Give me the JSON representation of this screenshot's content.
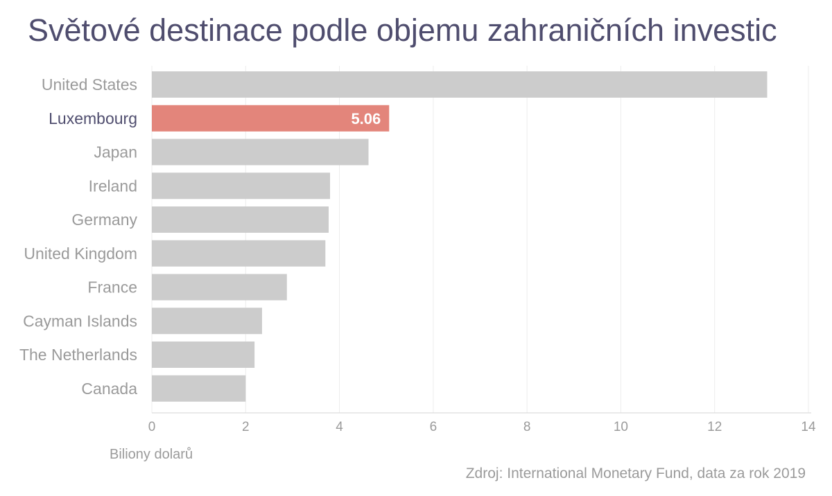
{
  "chart_data": {
    "type": "bar",
    "orientation": "horizontal",
    "title": "Světové destinace podle objemu zahraničních investic",
    "xlabel": "Biliony dolarů",
    "ylabel": "",
    "source": "Zdroj: International Monetary Fund, data za rok 2019",
    "categories": [
      "United States",
      "Luxembourg",
      "Japan",
      "Ireland",
      "Germany",
      "United Kingdom",
      "France",
      "Cayman Islands",
      "The Netherlands",
      "Canada"
    ],
    "values": [
      13.12,
      5.06,
      4.62,
      3.8,
      3.77,
      3.7,
      2.88,
      2.35,
      2.19,
      2.0
    ],
    "highlight": {
      "category": "Luxembourg",
      "label": "5.06"
    },
    "xlim": [
      0,
      14
    ],
    "xticks": [
      "0",
      "2",
      "4",
      "6",
      "8",
      "10",
      "12",
      "14"
    ],
    "grid": true,
    "colors": {
      "bar": "#cccccc",
      "highlight": "#e3857b",
      "title": "#4f4d6e",
      "label": "#9a9a9a",
      "highlight_label": "#4f4d6e",
      "grid": "#ececec"
    }
  }
}
